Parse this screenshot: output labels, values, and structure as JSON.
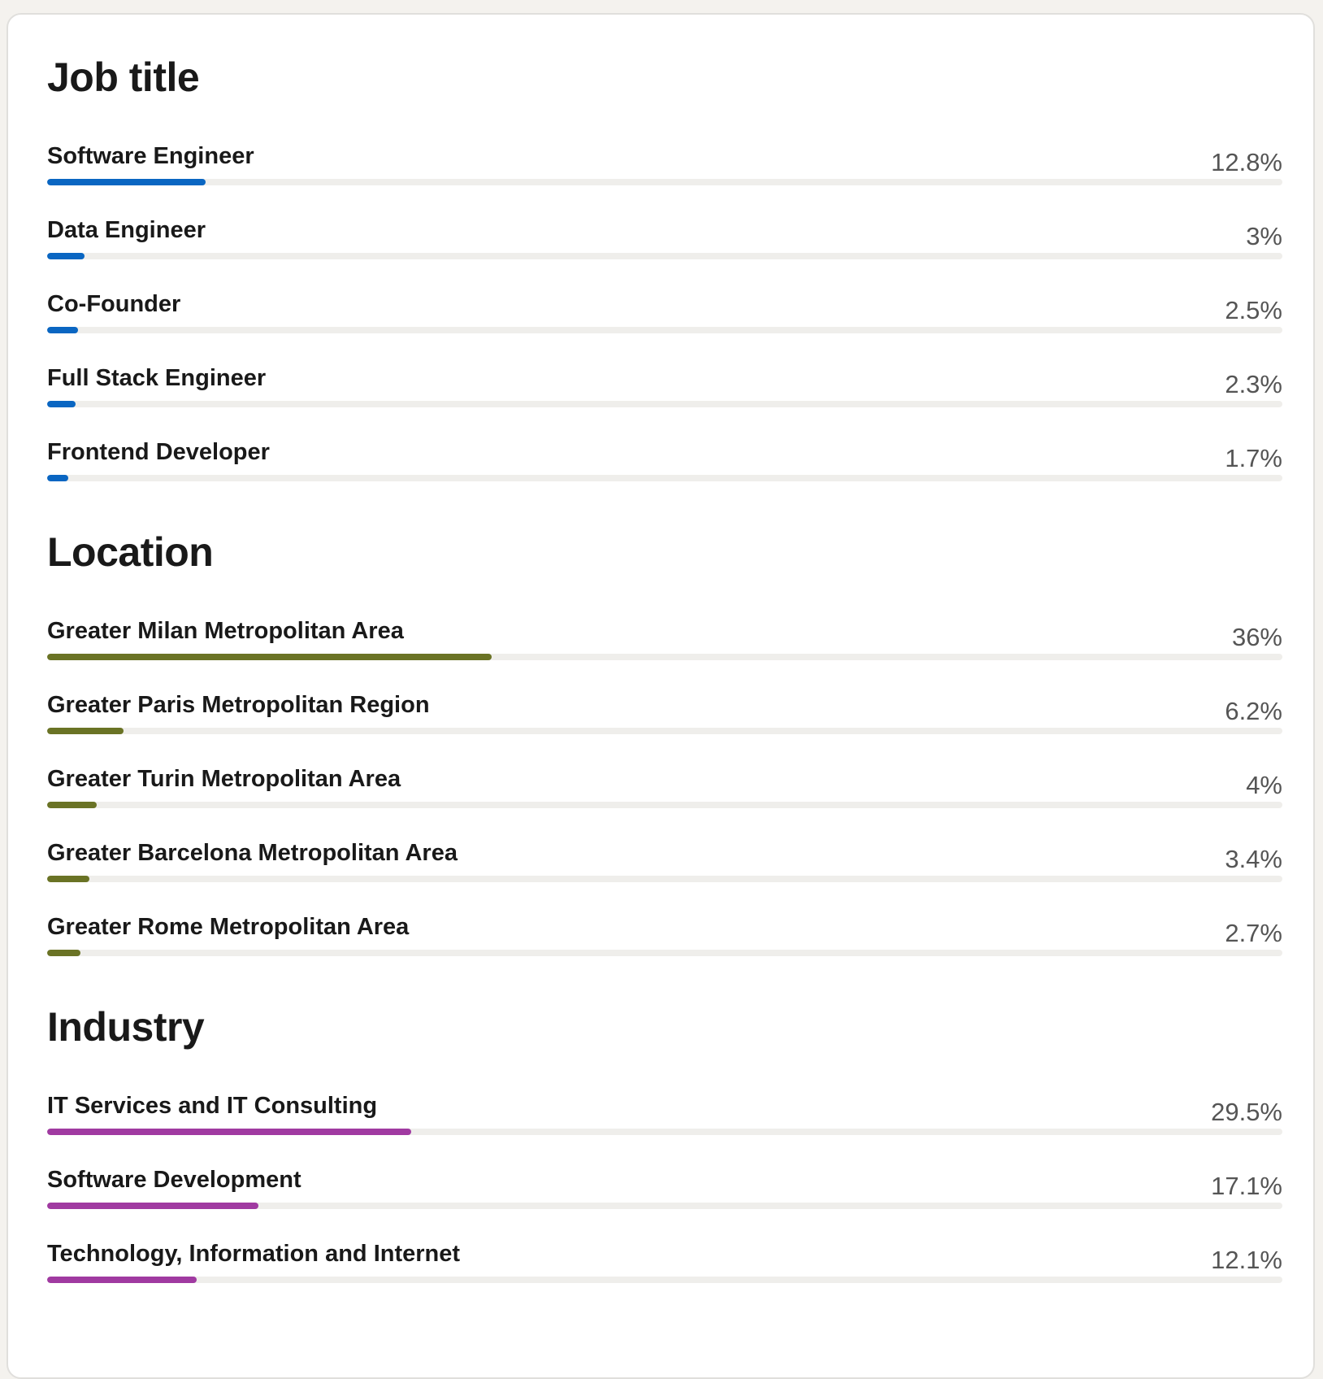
{
  "sections": [
    {
      "title": "Job title",
      "color": "#0a66c2",
      "items": [
        {
          "label": "Software Engineer",
          "value": "12.8%",
          "percent": 12.8
        },
        {
          "label": "Data Engineer",
          "value": "3%",
          "percent": 3
        },
        {
          "label": "Co-Founder",
          "value": "2.5%",
          "percent": 2.5
        },
        {
          "label": "Full Stack Engineer",
          "value": "2.3%",
          "percent": 2.3
        },
        {
          "label": "Frontend Developer",
          "value": "1.7%",
          "percent": 1.7
        }
      ]
    },
    {
      "title": "Location",
      "color": "#6a7325",
      "items": [
        {
          "label": "Greater Milan Metropolitan Area",
          "value": "36%",
          "percent": 36
        },
        {
          "label": "Greater Paris Metropolitan Region",
          "value": "6.2%",
          "percent": 6.2
        },
        {
          "label": "Greater Turin Metropolitan Area",
          "value": "4%",
          "percent": 4
        },
        {
          "label": "Greater Barcelona Metropolitan Area",
          "value": "3.4%",
          "percent": 3.4
        },
        {
          "label": "Greater Rome Metropolitan Area",
          "value": "2.7%",
          "percent": 2.7
        }
      ]
    },
    {
      "title": "Industry",
      "color": "#a03aa1",
      "items": [
        {
          "label": "IT Services and IT Consulting",
          "value": "29.5%",
          "percent": 29.5
        },
        {
          "label": "Software Development",
          "value": "17.1%",
          "percent": 17.1
        },
        {
          "label": "Technology, Information and Internet",
          "value": "12.1%",
          "percent": 12.1
        }
      ]
    }
  ]
}
